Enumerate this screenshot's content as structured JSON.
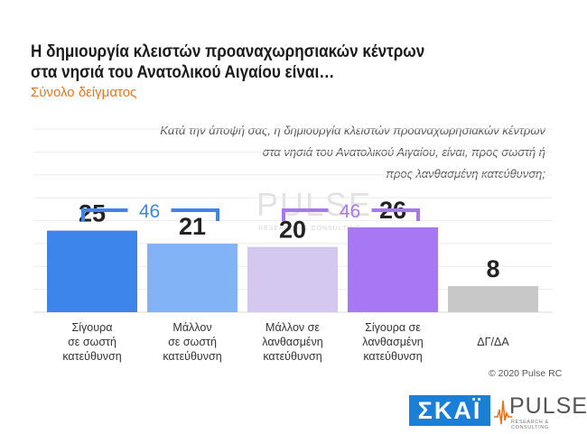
{
  "title_line1": "Η δημιουργία κλειστών προαναχωρησιακών κέντρων",
  "title_line2": "στα νησιά του Ανατολικού Αιγαίου είναι…",
  "subtitle": "Σύνολο δείγματος",
  "question_line1": "Κατά την άποψή σας, η δημιουργία κλειστών προαναχωρησιακών κέντρων",
  "question_line2": "στα νησιά του Ανατολικού Αιγαίου, είναι, προς σωστή ή",
  "question_line3": "προς λανθασμένη κατεύθυνση;",
  "copyright": "© 2020 Pulse RC",
  "logos": {
    "skai": "ΣΚΑΪ",
    "pulse": "PULSE",
    "pulse_sub": "RESEARCH & CONSULTING"
  },
  "chart_data": {
    "type": "bar",
    "categories": [
      [
        "Σίγουρα",
        "σε σωστή",
        "κατεύθυνση"
      ],
      [
        "Μάλλον",
        "σε σωστή",
        "κατεύθυνση"
      ],
      [
        "Μάλλον σε",
        "λανθασμένη",
        "κατεύθυνση"
      ],
      [
        "Σίγουρα σε",
        "λανθασμένη",
        "κατεύθυνση"
      ],
      [
        "ΔΓ/ΔΑ"
      ]
    ],
    "values": [
      25,
      21,
      20,
      26,
      8
    ],
    "colors": [
      "#3d85ea",
      "#82b3f7",
      "#d5c8f0",
      "#a678f4",
      "#c8c8c8"
    ],
    "ylim": [
      0,
      60
    ],
    "grid": true,
    "groups": [
      {
        "label": "46",
        "from": 0,
        "to": 1,
        "color": "#3d85ea"
      },
      {
        "label": "46",
        "from": 2,
        "to": 3,
        "color": "#a678f4"
      }
    ]
  }
}
